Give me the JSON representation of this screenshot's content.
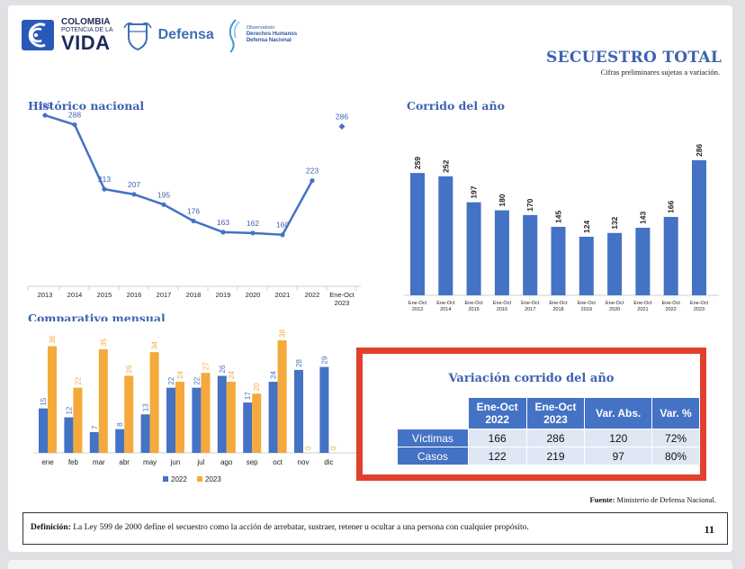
{
  "header": {
    "logo_line1": "COLOMBIA",
    "logo_line2": "POTENCIA DE LA",
    "logo_line3": "VIDA",
    "defensa": "Defensa",
    "obs_line1": "Observatorio",
    "obs_line2": "Derechos Humanos",
    "obs_line3": "Defensa Nacional",
    "title": "SECUESTRO TOTAL",
    "subtitle": "Cifras preliminares sujetas a variación."
  },
  "sections": {
    "historico": "Histórico nacional",
    "corrido": "Corrido del año",
    "mensual": "Comparativo mensual"
  },
  "colors": {
    "line": "#4472c4",
    "bar_blue": "#4472c4",
    "bar_orange": "#f5a93a",
    "title_blue": "#3d62b1",
    "highlight_red": "#e0402e"
  },
  "chart_data": [
    {
      "type": "line",
      "title": "Histórico nacional",
      "x": [
        "2013",
        "2014",
        "2015",
        "2016",
        "2017",
        "2018",
        "2019",
        "2020",
        "2021",
        "2022",
        "Ene-Oct 2023"
      ],
      "values": [
        299,
        288,
        213,
        207,
        195,
        176,
        163,
        162,
        160,
        223,
        286
      ],
      "connected_points": 10,
      "grid": false
    },
    {
      "type": "bar",
      "title": "Corrido del año",
      "categories": [
        "Ene-Oct 2013",
        "Ene-Oct 2014",
        "Ene-Oct 2015",
        "Ene-Oct 2016",
        "Ene-Oct 2017",
        "Ene-Oct 2018",
        "Ene-Oct 2019",
        "Ene-Oct 2020",
        "Ene-Oct 2021",
        "Ene-Oct 2022",
        "Ene-Oct 2023"
      ],
      "values": [
        259,
        252,
        197,
        180,
        170,
        145,
        124,
        132,
        143,
        166,
        286
      ],
      "grid": false
    },
    {
      "type": "bar",
      "title": "Comparativo mensual",
      "categories": [
        "ene",
        "feb",
        "mar",
        "abr",
        "may",
        "jun",
        "jul",
        "ago",
        "sep",
        "oct",
        "nov",
        "dic"
      ],
      "series": [
        {
          "name": "2022",
          "values": [
            15,
            12,
            7,
            8,
            13,
            22,
            22,
            26,
            17,
            24,
            28,
            29
          ]
        },
        {
          "name": "2023",
          "values": [
            36,
            22,
            35,
            26,
            34,
            24,
            27,
            24,
            20,
            38,
            0,
            0
          ]
        }
      ],
      "legend": "bottom",
      "grid": false
    }
  ],
  "variacion": {
    "title": "Variación corrido del año",
    "headers": [
      "Ene-Oct 2022",
      "Ene-Oct 2023",
      "Var. Abs.",
      "Var. %"
    ],
    "rows": [
      {
        "label": "Víctimas",
        "values": [
          "166",
          "286",
          "120",
          "72%"
        ]
      },
      {
        "label": "Casos",
        "values": [
          "122",
          "219",
          "97",
          "80%"
        ]
      }
    ]
  },
  "footer": {
    "fuente_label": "Fuente:",
    "fuente_text": "Ministerio de Defensa Nacional.",
    "def_label": "Definición:",
    "def_text": "La Ley 599 de 2000 define el secuestro como la acción de arrebatar, sustraer, retener u ocultar a una persona con cualquier propósito.",
    "page_number": "11"
  }
}
